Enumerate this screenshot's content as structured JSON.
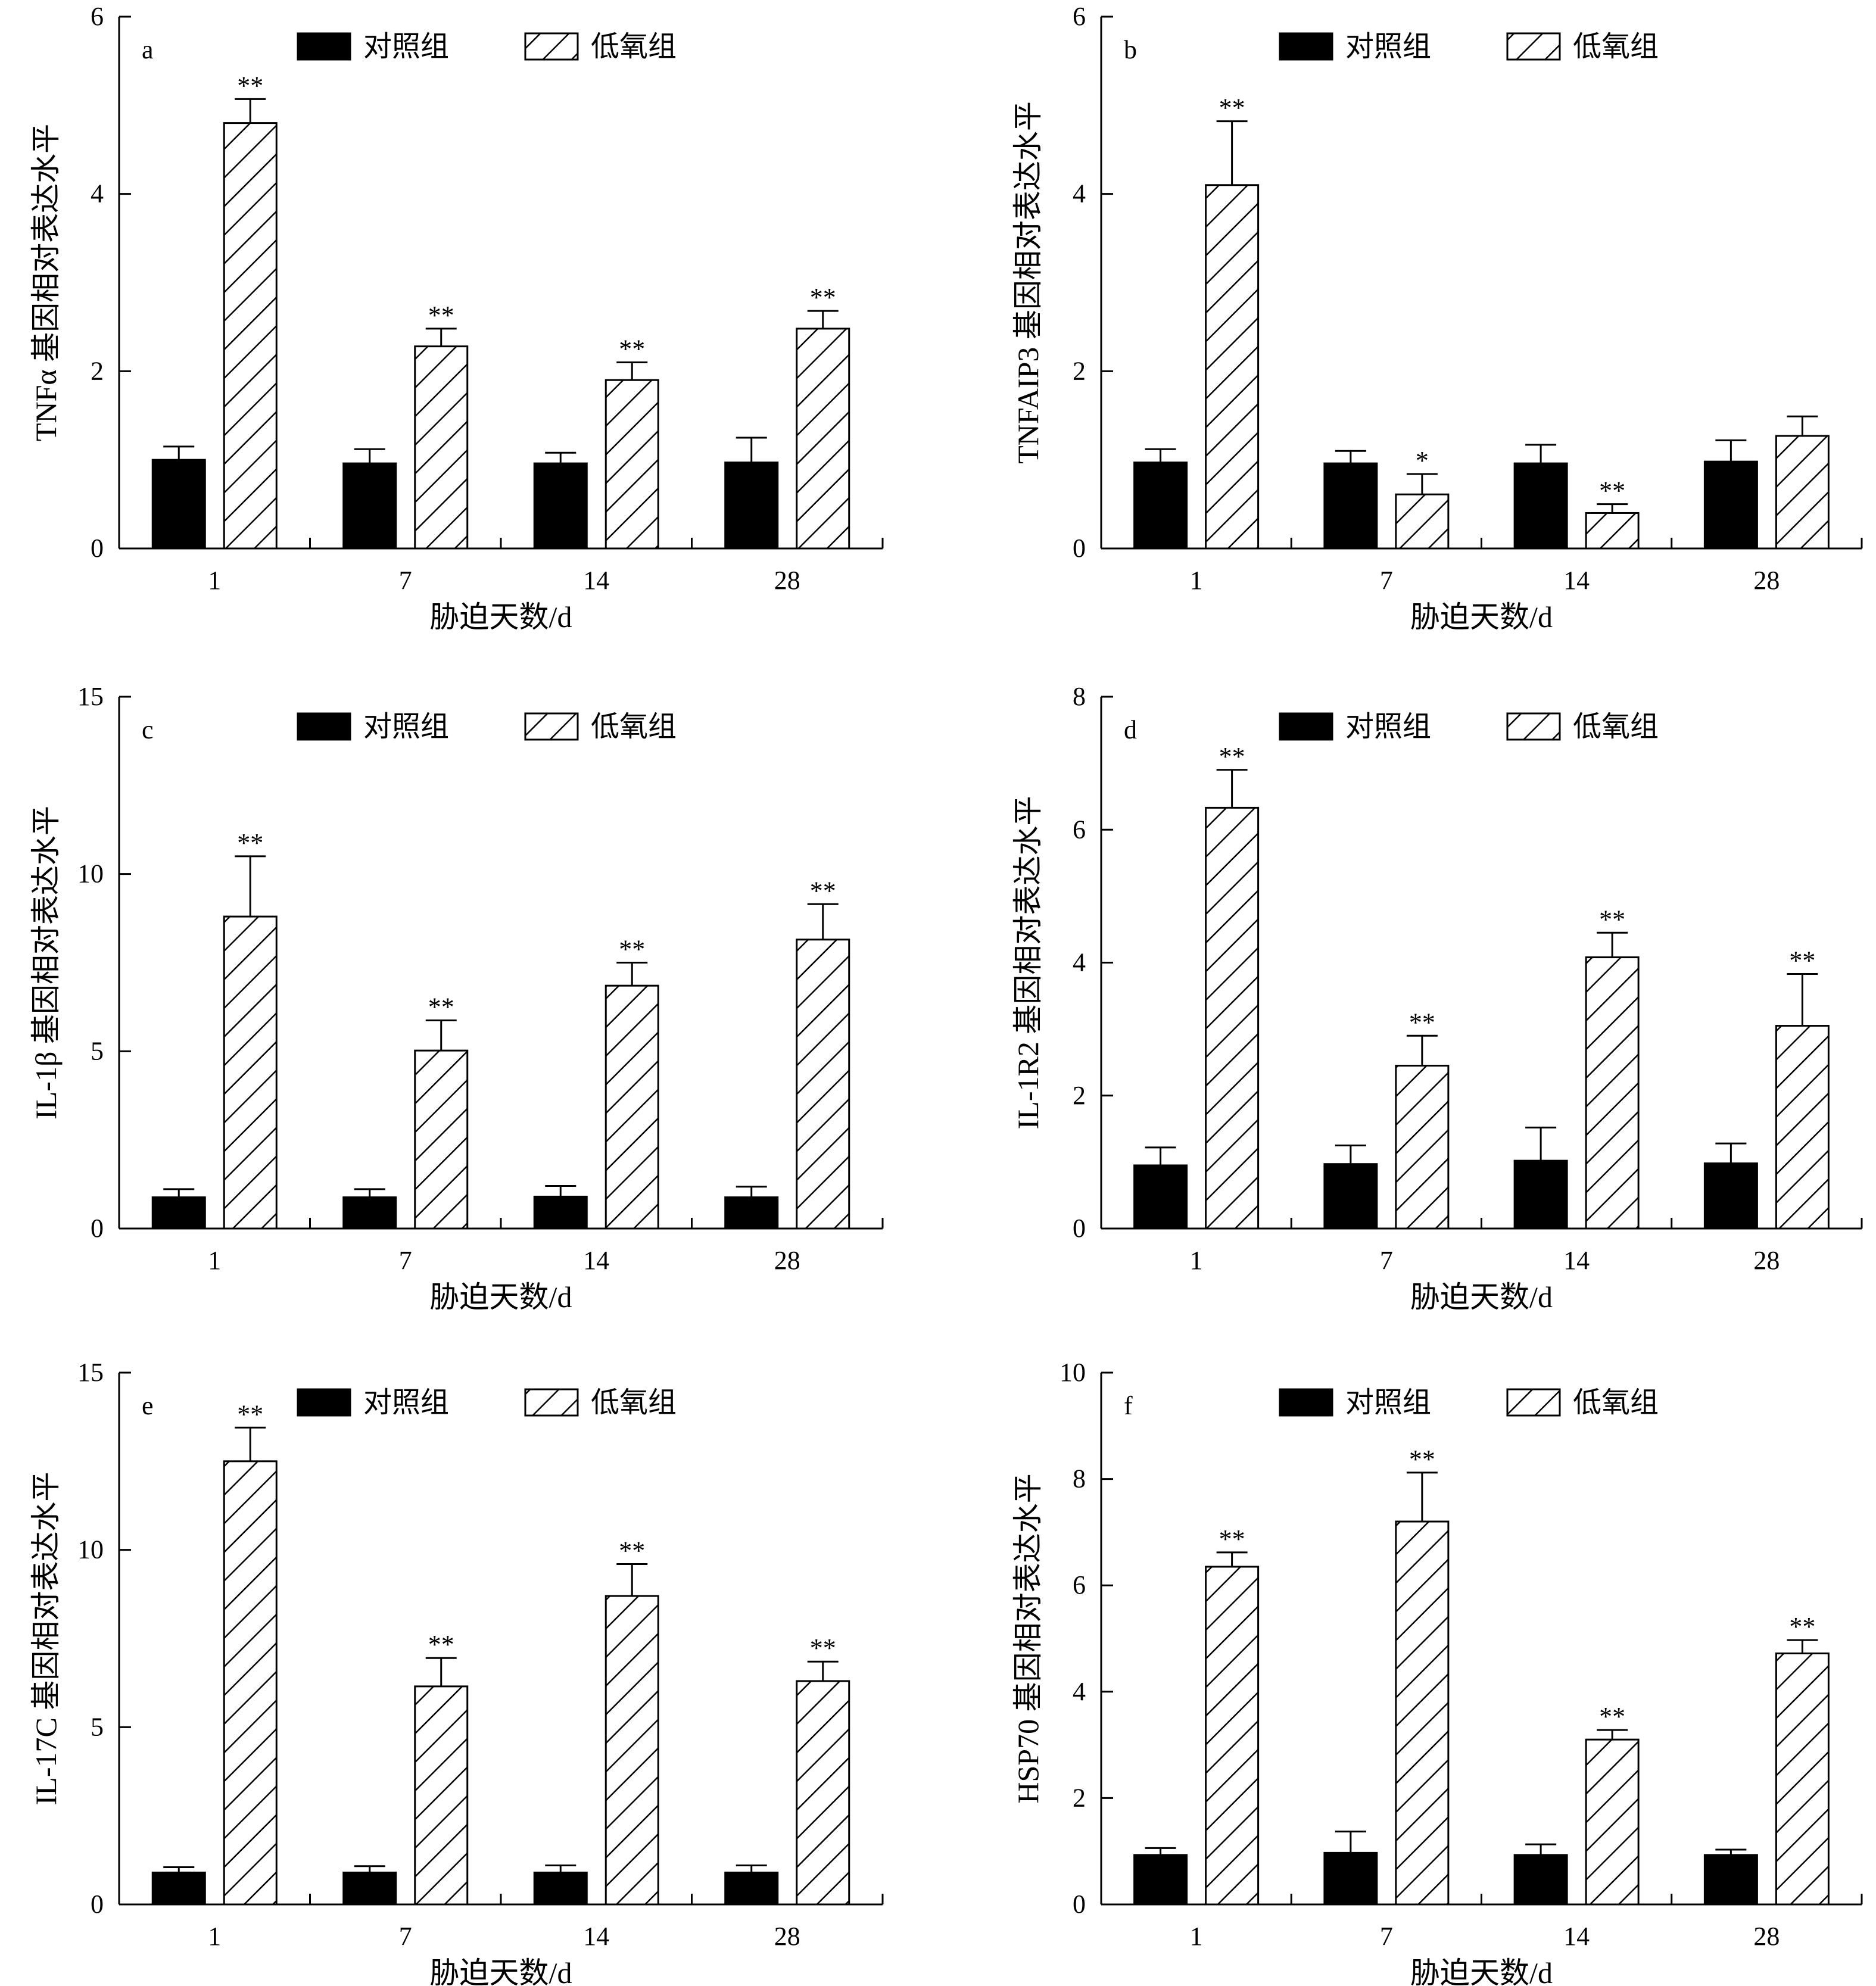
{
  "legend": {
    "control": "对照组",
    "hypoxia": "低氧组"
  },
  "colors": {
    "control": "#000000",
    "hypoxia_hatch": "#000000",
    "background": "#ffffff"
  },
  "chart_data": [
    {
      "type": "bar",
      "panel": "a",
      "ylabel": "TNFα 基因相对表达水平",
      "xlabel": "胁迫天数/d",
      "categories": [
        "1",
        "7",
        "14",
        "28"
      ],
      "ylim": [
        0,
        6
      ],
      "yticks": [
        0,
        2,
        4,
        6
      ],
      "series": [
        {
          "name": "对照组",
          "values": [
            1.0,
            0.96,
            0.96,
            0.97
          ],
          "errors": [
            0.15,
            0.16,
            0.12,
            0.28
          ]
        },
        {
          "name": "低氧组",
          "values": [
            4.8,
            2.28,
            1.9,
            2.48
          ],
          "errors": [
            0.27,
            0.2,
            0.2,
            0.2
          ]
        }
      ],
      "significance": [
        "**",
        "**",
        "**",
        "**"
      ]
    },
    {
      "type": "bar",
      "panel": "b",
      "ylabel": "TNFAIP3 基因相对表达水平",
      "xlabel": "胁迫天数/d",
      "categories": [
        "1",
        "7",
        "14",
        "28"
      ],
      "ylim": [
        0,
        6
      ],
      "yticks": [
        0,
        2,
        4,
        6
      ],
      "series": [
        {
          "name": "对照组",
          "values": [
            0.97,
            0.96,
            0.96,
            0.98
          ],
          "errors": [
            0.15,
            0.14,
            0.21,
            0.24
          ]
        },
        {
          "name": "低氧组",
          "values": [
            4.1,
            0.61,
            0.4,
            1.27
          ],
          "errors": [
            0.72,
            0.23,
            0.1,
            0.22
          ]
        }
      ],
      "significance": [
        "**",
        "*",
        "**",
        ""
      ]
    },
    {
      "type": "bar",
      "panel": "c",
      "ylabel": "IL-1β 基因相对表达水平",
      "xlabel": "胁迫天数/d",
      "categories": [
        "1",
        "7",
        "14",
        "28"
      ],
      "ylim": [
        0,
        15
      ],
      "yticks": [
        0,
        5,
        10,
        15
      ],
      "series": [
        {
          "name": "对照组",
          "values": [
            0.88,
            0.88,
            0.9,
            0.88
          ],
          "errors": [
            0.23,
            0.23,
            0.3,
            0.3
          ]
        },
        {
          "name": "低氧组",
          "values": [
            8.8,
            5.02,
            6.85,
            8.15
          ],
          "errors": [
            1.7,
            0.85,
            0.65,
            1.0
          ]
        }
      ],
      "significance": [
        "**",
        "**",
        "**",
        "**"
      ]
    },
    {
      "type": "bar",
      "panel": "d",
      "ylabel": "IL-1R2 基因相对表达水平",
      "xlabel": "胁迫天数/d",
      "categories": [
        "1",
        "7",
        "14",
        "28"
      ],
      "ylim": [
        0,
        8
      ],
      "yticks": [
        0,
        2,
        4,
        6,
        8
      ],
      "series": [
        {
          "name": "对照组",
          "values": [
            0.95,
            0.97,
            1.02,
            0.98
          ],
          "errors": [
            0.27,
            0.28,
            0.5,
            0.3
          ]
        },
        {
          "name": "低氧组",
          "values": [
            6.33,
            2.45,
            4.08,
            3.05
          ],
          "errors": [
            0.57,
            0.45,
            0.37,
            0.78
          ]
        }
      ],
      "significance": [
        "**",
        "**",
        "**",
        "**"
      ]
    },
    {
      "type": "bar",
      "panel": "e",
      "ylabel": "IL-17C 基因相对表达水平",
      "xlabel": "胁迫天数/d",
      "categories": [
        "1",
        "7",
        "14",
        "28"
      ],
      "ylim": [
        0,
        15
      ],
      "yticks": [
        0,
        5,
        10,
        15
      ],
      "series": [
        {
          "name": "对照组",
          "values": [
            0.9,
            0.9,
            0.9,
            0.9
          ],
          "errors": [
            0.15,
            0.18,
            0.2,
            0.2
          ]
        },
        {
          "name": "低氧组",
          "values": [
            12.5,
            6.15,
            8.7,
            6.3
          ],
          "errors": [
            0.95,
            0.8,
            0.9,
            0.55
          ]
        }
      ],
      "significance": [
        "**",
        "**",
        "**",
        "**"
      ]
    },
    {
      "type": "bar",
      "panel": "f",
      "ylabel": "HSP70 基因相对表达水平",
      "xlabel": "胁迫天数/d",
      "categories": [
        "1",
        "7",
        "14",
        "28"
      ],
      "ylim": [
        0,
        10
      ],
      "yticks": [
        0,
        2,
        4,
        6,
        8,
        10
      ],
      "series": [
        {
          "name": "对照组",
          "values": [
            0.93,
            0.97,
            0.93,
            0.93
          ],
          "errors": [
            0.13,
            0.4,
            0.2,
            0.1
          ]
        },
        {
          "name": "低氧组",
          "values": [
            6.35,
            7.2,
            3.1,
            4.72
          ],
          "errors": [
            0.27,
            0.92,
            0.18,
            0.25
          ]
        }
      ],
      "significance": [
        "**",
        "**",
        "**",
        "**"
      ]
    }
  ]
}
